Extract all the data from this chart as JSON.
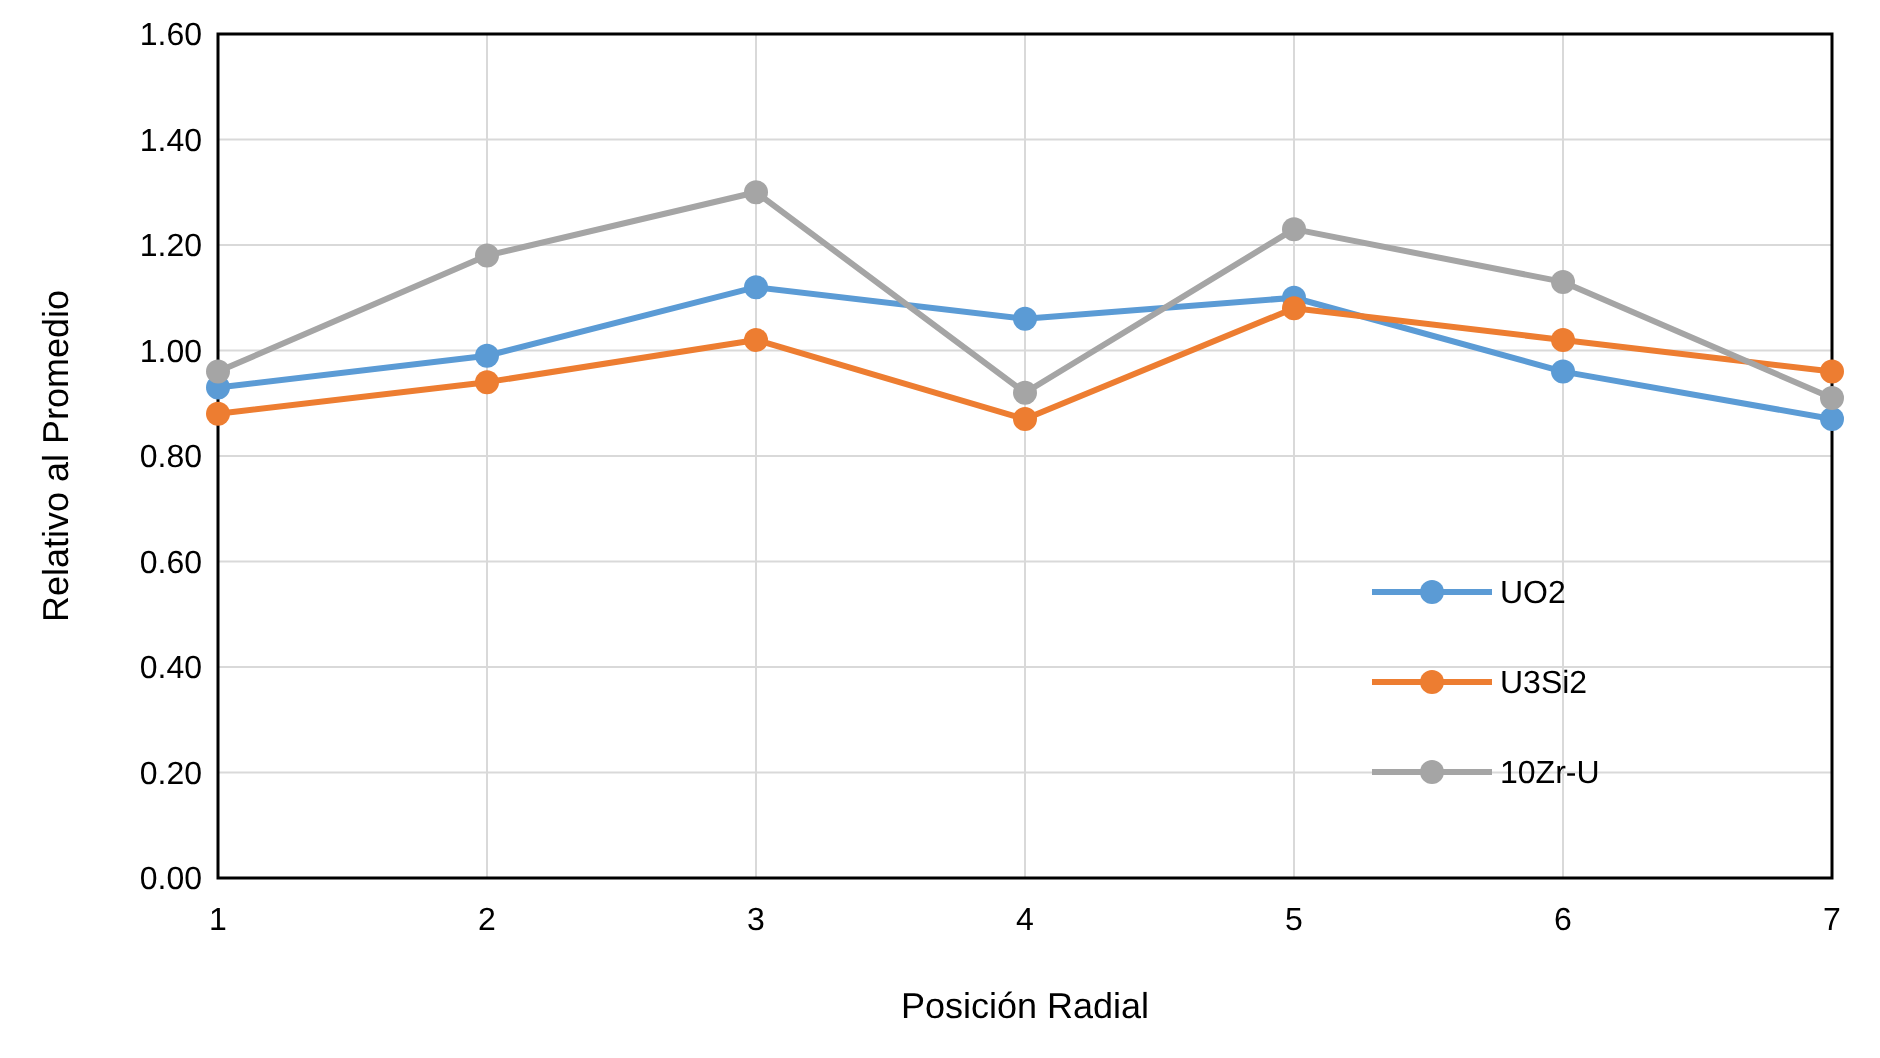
{
  "chart_data": {
    "type": "line",
    "xlabel": "Posición Radial",
    "ylabel": "Relativo al Promedio",
    "x": [
      1,
      2,
      3,
      4,
      5,
      6,
      7
    ],
    "xlim": [
      1,
      7
    ],
    "xticks": [
      1,
      2,
      3,
      4,
      5,
      6,
      7
    ],
    "ylim": [
      0,
      1.6
    ],
    "yticks": [
      {
        "value": 0,
        "label": "0.00"
      },
      {
        "value": 0.2,
        "label": "0.20"
      },
      {
        "value": 0.4,
        "label": "0.40"
      },
      {
        "value": 0.6,
        "label": "0.60"
      },
      {
        "value": 0.8,
        "label": "0.80"
      },
      {
        "value": 1,
        "label": "1.00"
      },
      {
        "value": 1.2,
        "label": "1.20"
      },
      {
        "value": 1.4,
        "label": "1.40"
      },
      {
        "value": 1.6,
        "label": "1.60"
      }
    ],
    "grid": true,
    "legend": "bottom right",
    "marker": "circle",
    "series": [
      {
        "name": "UO2",
        "color": "#5b9bd5",
        "values": [
          0.93,
          0.99,
          1.12,
          1.06,
          1.1,
          0.96,
          0.87
        ]
      },
      {
        "name": "U3Si2",
        "color": "#ed7d31",
        "values": [
          0.88,
          0.94,
          1.02,
          0.87,
          1.08,
          1.02,
          0.96
        ]
      },
      {
        "name": "10Zr-U",
        "color": "#a5a5a5",
        "values": [
          0.96,
          1.18,
          1.3,
          0.92,
          1.23,
          1.13,
          0.91
        ]
      }
    ]
  }
}
